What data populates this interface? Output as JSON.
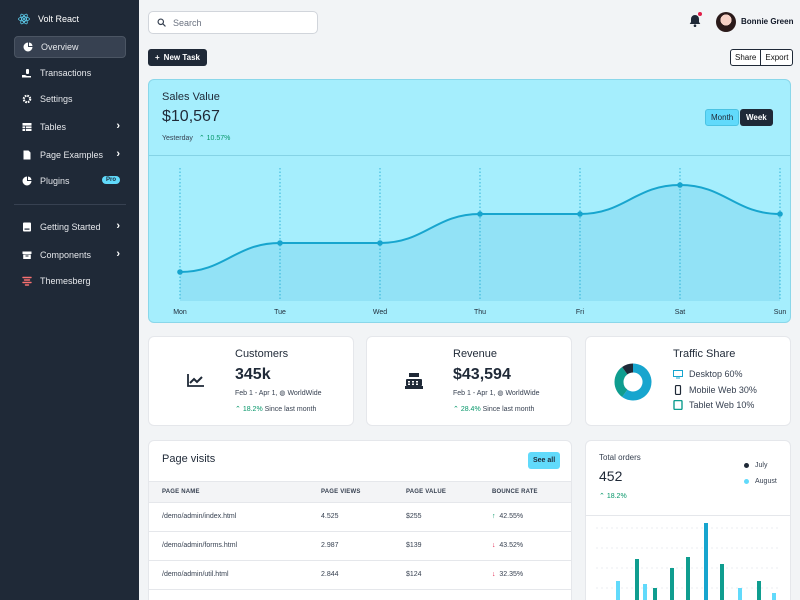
{
  "sidebar": {
    "brand": "Volt React",
    "items": [
      {
        "label": "Overview",
        "icon": "pie-chart-icon"
      },
      {
        "label": "Transactions",
        "icon": "hand-holding-dollar-icon"
      },
      {
        "label": "Settings",
        "icon": "gear-icon"
      },
      {
        "label": "Tables",
        "icon": "table-icon"
      },
      {
        "label": "Page Examples",
        "icon": "file-icon"
      },
      {
        "label": "Plugins",
        "icon": "chart-pie-icon",
        "badge": "Pro"
      },
      {
        "label": "Getting Started",
        "icon": "book-icon"
      },
      {
        "label": "Components",
        "icon": "box-icon"
      },
      {
        "label": "Themesberg",
        "icon": "themesberg-logo-icon"
      }
    ]
  },
  "topbar": {
    "search_placeholder": "Search",
    "user_name": "Bonnie Green"
  },
  "actions": {
    "new_task": "New Task",
    "share": "Share",
    "export": "Export"
  },
  "sales": {
    "title": "Sales Value",
    "value": "$10,567",
    "period_label": "Yesterday",
    "change": "10.57%",
    "toggle_month": "Month",
    "toggle_week": "Week"
  },
  "chart_data": {
    "type": "area",
    "categories": [
      "Mon",
      "Tue",
      "Wed",
      "Thu",
      "Fri",
      "Sat",
      "Sun"
    ],
    "values": [
      1,
      2,
      2,
      3,
      3,
      4,
      3
    ],
    "ylim": [
      0,
      5
    ],
    "grid": "vertical dotted lines",
    "color": "#17a5ce"
  },
  "customers": {
    "title": "Customers",
    "value": "345k",
    "range": "Feb 1 - Apr 1,",
    "region": "WorldWide",
    "change": "18.2%",
    "since": "Since last month"
  },
  "revenue": {
    "title": "Revenue",
    "value": "$43,594",
    "range": "Feb 1 - Apr 1,",
    "region": "WorldWide",
    "change": "28.4%",
    "since": "Since last month"
  },
  "traffic": {
    "title": "Traffic Share",
    "slices": [
      {
        "label": "Desktop",
        "value": "60%",
        "pct": 60,
        "color": "#17a5ce"
      },
      {
        "label": "Mobile Web",
        "value": "30%",
        "pct": 30,
        "color": "#0f9d8f"
      },
      {
        "label": "Tablet Web",
        "value": "10%",
        "pct": 10,
        "color": "#1f2937"
      }
    ]
  },
  "page_visits": {
    "title": "Page visits",
    "see_all": "See all",
    "headers": [
      "PAGE NAME",
      "PAGE VIEWS",
      "PAGE VALUE",
      "BOUNCE RATE"
    ],
    "rows": [
      {
        "name": "/demo/admin/index.html",
        "views": "4.525",
        "value": "$255",
        "bounce": "42.55%",
        "trend": "up"
      },
      {
        "name": "/demo/admin/forms.html",
        "views": "2.987",
        "value": "$139",
        "bounce": "43.52%",
        "trend": "down"
      },
      {
        "name": "/demo/admin/util.html",
        "views": "2.844",
        "value": "$124",
        "bounce": "32.35%",
        "trend": "down"
      }
    ]
  },
  "total_orders": {
    "title": "Total orders",
    "value": "452",
    "change": "18.2%",
    "legend": [
      {
        "label": "July",
        "color": "#1f2937"
      },
      {
        "label": "August",
        "color": "#61dafb"
      }
    ]
  }
}
